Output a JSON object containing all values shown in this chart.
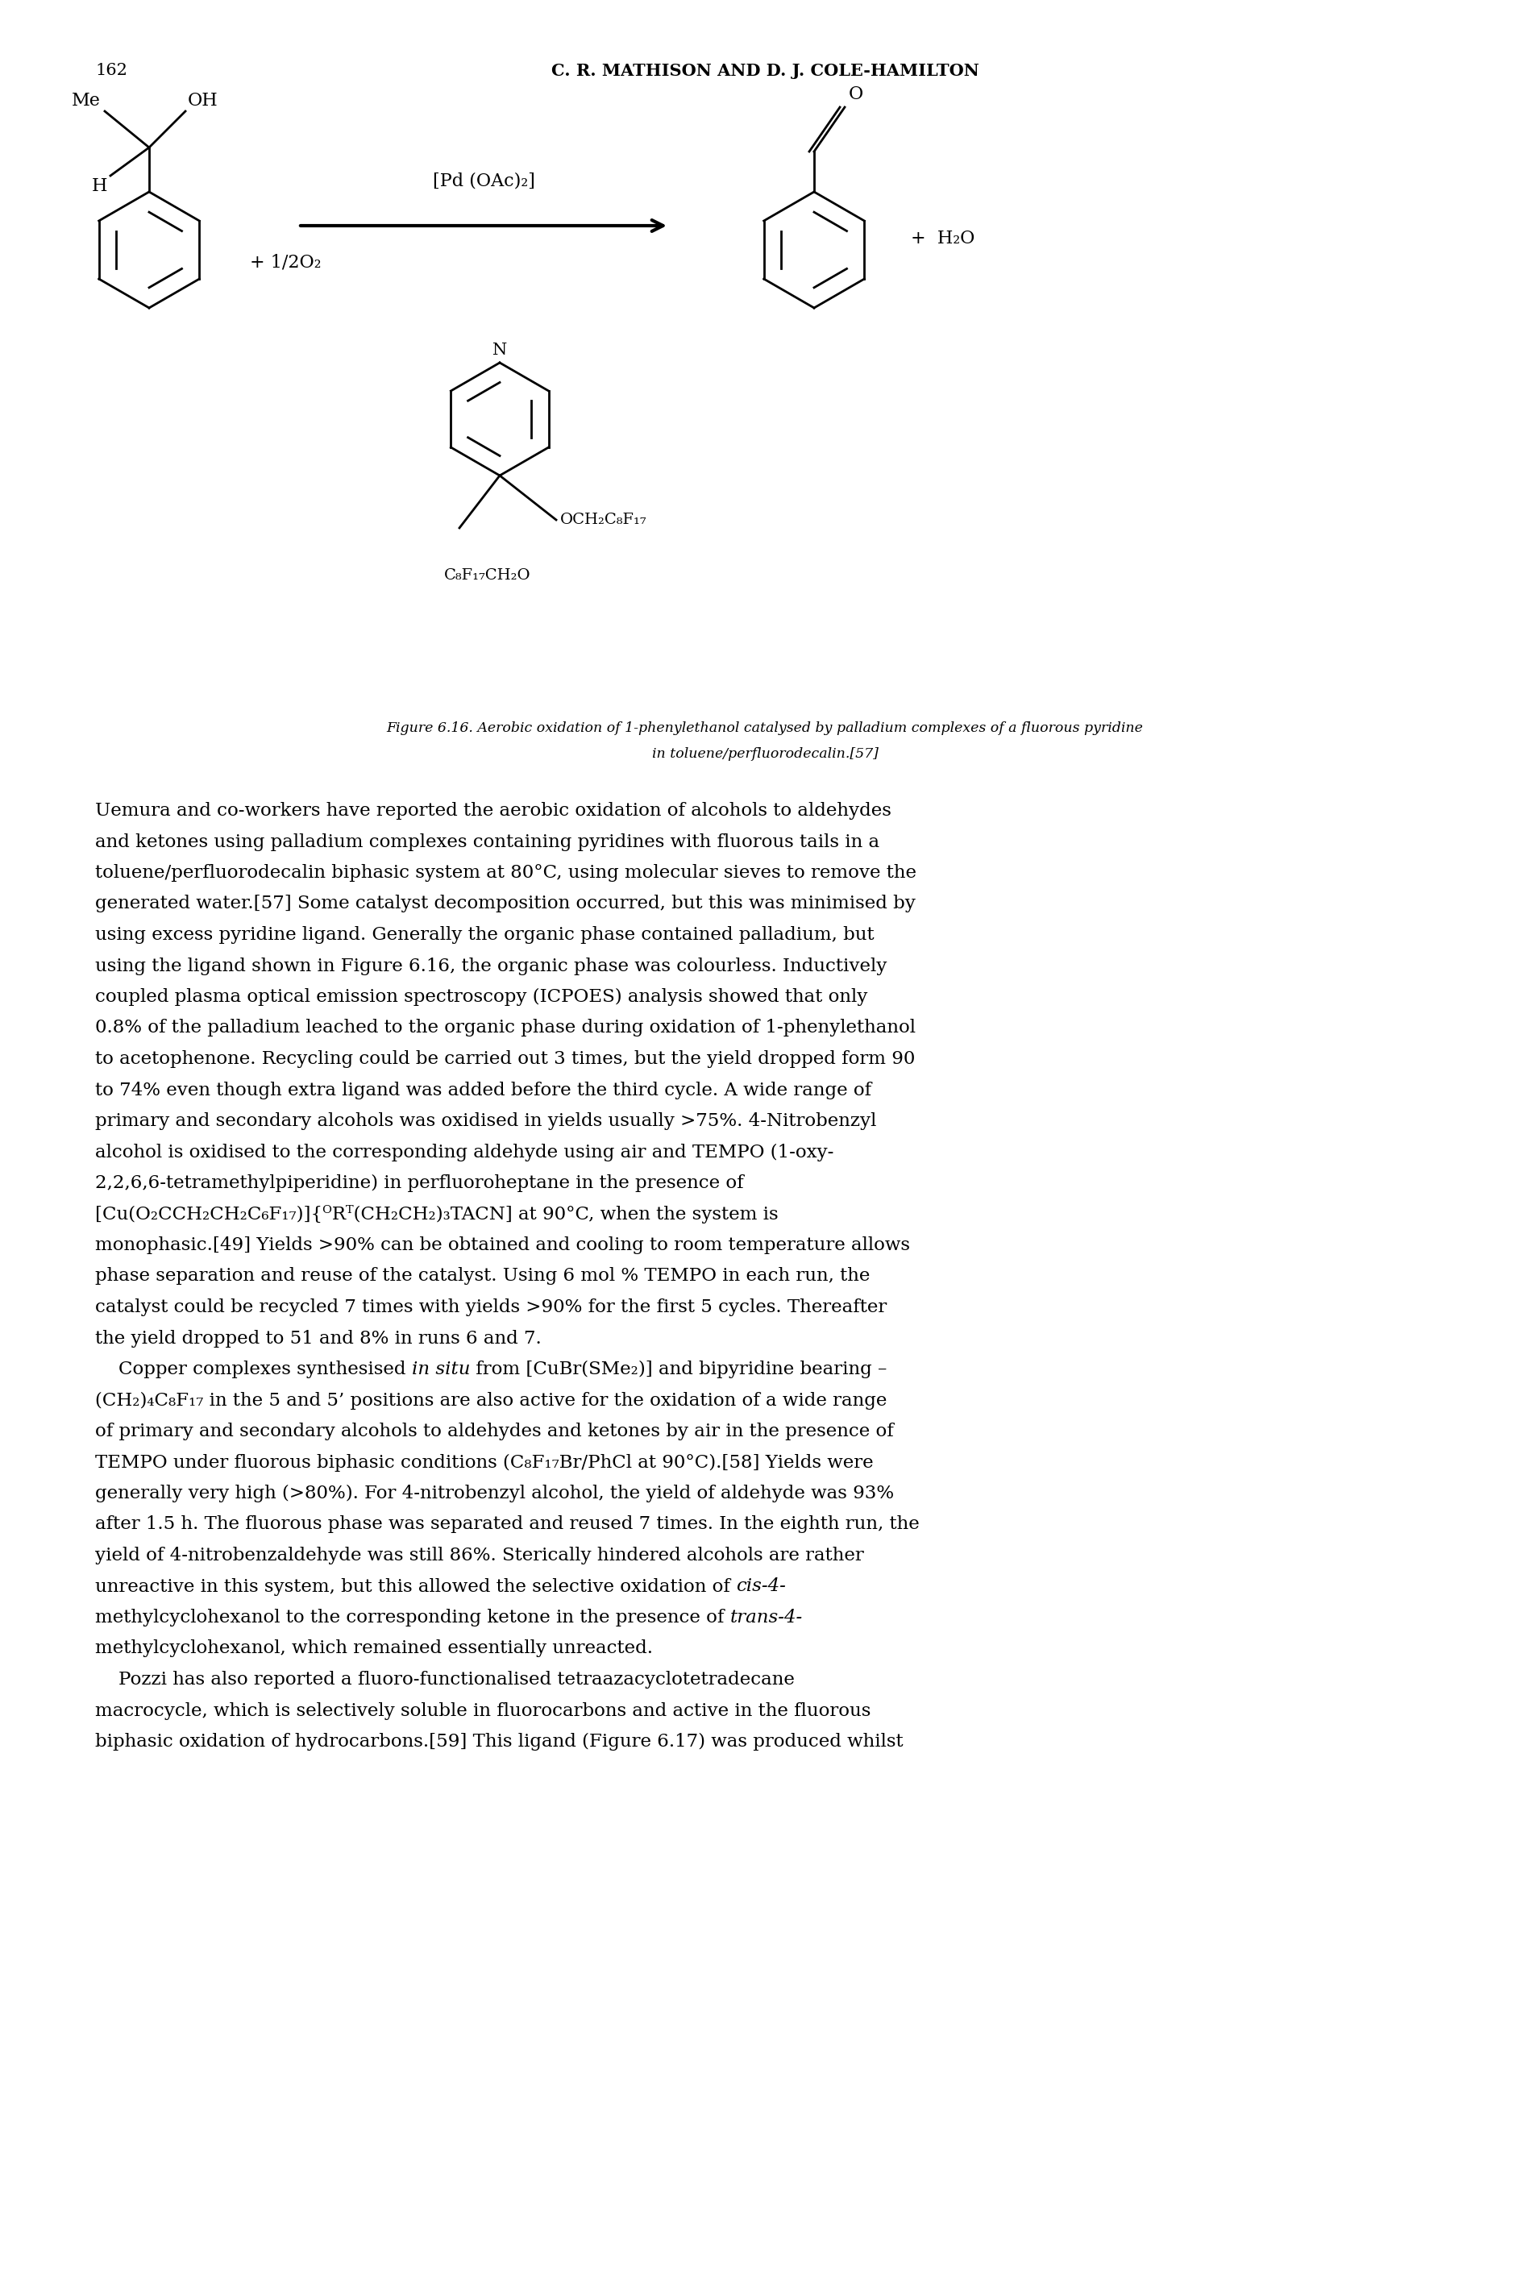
{
  "page_number": "162",
  "header": "C. R. MATHISON AND D. J. COLE-HAMILTON",
  "figure_caption_line1": "Figure 6.16. Aerobic oxidation of 1-phenylethanol catalysed by palladium complexes of a fluorous pyridine",
  "figure_caption_line2": "in toluene/perfluorodecalin.[57]",
  "body_text": [
    "Uemura and co-workers have reported the aerobic oxidation of alcohols to aldehydes",
    "and ketones using palladium complexes containing pyridines with fluorous tails in a",
    "toluene/perfluorodecalin biphasic system at 80°C, using molecular sieves to remove the",
    "generated water.[57] Some catalyst decomposition occurred, but this was minimised by",
    "using excess pyridine ligand. Generally the organic phase contained palladium, but",
    "using the ligand shown in Figure 6.16, the organic phase was colourless. Inductively",
    "coupled plasma optical emission spectroscopy (ICPOES) analysis showed that only",
    "0.8% of the palladium leached to the organic phase during oxidation of 1-phenylethanol",
    "to acetophenone. Recycling could be carried out 3 times, but the yield dropped form 90",
    "to 74% even though extra ligand was added before the third cycle. A wide range of",
    "primary and secondary alcohols was oxidised in yields usually >75%. 4-Nitrobenzyl",
    "alcohol is oxidised to the corresponding aldehyde using air and TEMPO (1-oxy-",
    "2,2,6,6-tetramethylpiperidine) in perfluoroheptane in the presence of",
    "[Cu(O₂CCH₂CH₂C₆F₁₇)]{ᴼRᵀ(CH₂CH₂)₃TACN] at 90°C, when the system is",
    "monophasic.[49] Yields >90% can be obtained and cooling to room temperature allows",
    "phase separation and reuse of the catalyst. Using 6 mol % TEMPO in each run, the",
    "catalyst could be recycled 7 times with yields >90% for the first 5 cycles. Thereafter",
    "the yield dropped to 51 and 8% in runs 6 and 7.",
    "    Copper complexes synthesised in situ from [CuBr(SMe₂)] and bipyridine bearing –",
    "(CH₂)₄C₈F₁₇ in the 5 and 5’ positions are also active for the oxidation of a wide range",
    "of primary and secondary alcohols to aldehydes and ketones by air in the presence of",
    "TEMPO under fluorous biphasic conditions (C₈F₁₇Br/PhCl at 90°C).[58] Yields were",
    "generally very high (>80%). For 4-nitrobenzyl alcohol, the yield of aldehyde was 93%",
    "after 1.5 h. The fluorous phase was separated and reused 7 times. In the eighth run, the",
    "yield of 4-nitrobenzaldehyde was still 86%. Sterically hindered alcohols are rather",
    "unreactive in this system, but this allowed the selective oxidation of cis-4-",
    "methylcyclohexanol to the corresponding ketone in the presence of trans-4-",
    "methylcyclohexanol, which remained essentially unreacted.",
    "    Pozzi has also reported a fluoro-functionalised tetraazacyclotetradecane",
    "macrocycle, which is selectively soluble in fluorocarbons and active in the fluorous",
    "biphasic oxidation of hydrocarbons.[59] This ligand (Figure 6.17) was produced whilst"
  ],
  "background_color": "#ffffff",
  "text_color": "#000000"
}
